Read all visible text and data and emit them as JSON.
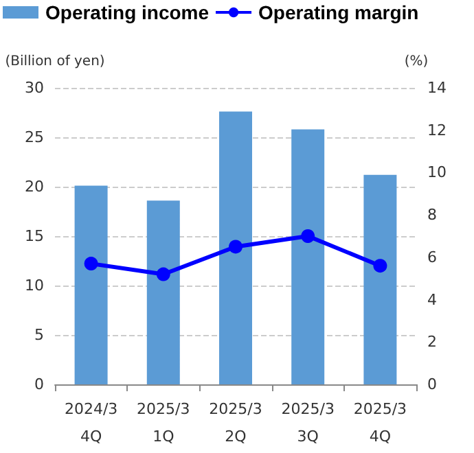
{
  "chart_data": {
    "type": "bar",
    "ylabel": "(Billion of yen)",
    "y2label": "(%)",
    "categories": [
      "2024/3\n4Q",
      "2025/3\n1Q",
      "2025/3\n2Q",
      "2025/3\n3Q",
      "2025/3\n4Q"
    ],
    "series": [
      {
        "name": "Operating income",
        "color": "#5b9bd5",
        "values": [
          20.1,
          18.6,
          27.6,
          25.8,
          21.2
        ]
      },
      {
        "name": "Operating margin",
        "type": "line",
        "axis": "y2",
        "color": "#0000ff",
        "values": [
          5.7,
          5.2,
          6.5,
          7.0,
          5.6
        ]
      }
    ],
    "ylim": [
      0,
      30
    ],
    "yticks": [
      0,
      5,
      10,
      15,
      20,
      25,
      30
    ],
    "y2lim": [
      0,
      14
    ],
    "y2ticks": [
      0,
      2,
      4,
      6,
      8,
      10,
      12,
      14
    ],
    "grid": "y",
    "legend": "top left",
    "marker": "circle"
  }
}
